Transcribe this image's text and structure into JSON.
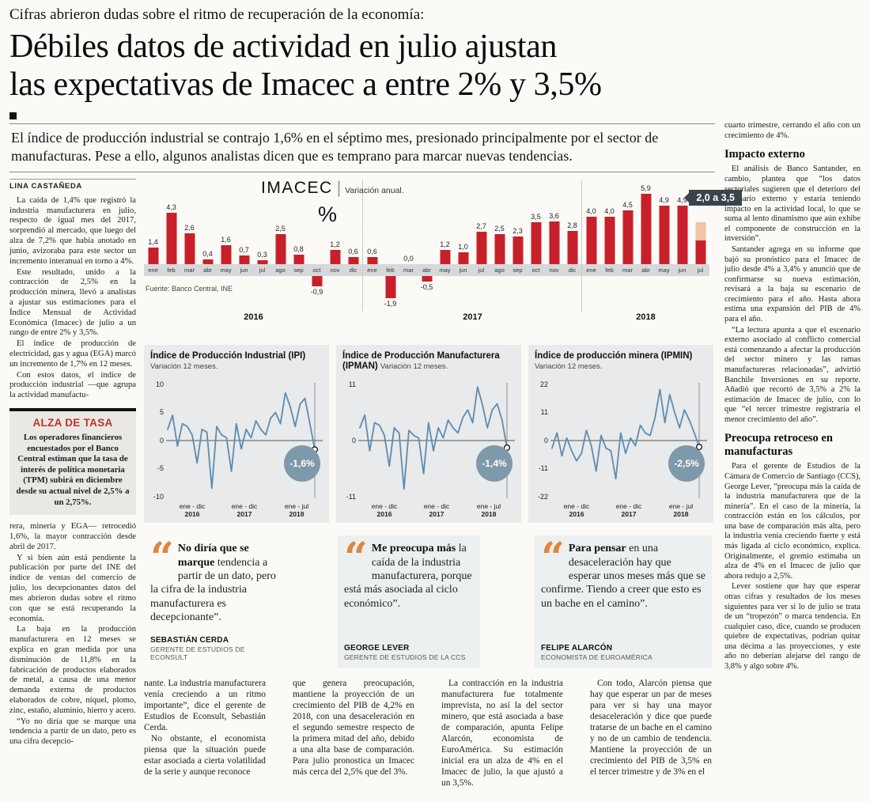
{
  "kicker": "Cifras abrieron dudas sobre el ritmo de recuperación de la economía:",
  "headline": {
    "line1": "Débiles datos de actividad en julio ajustan",
    "line2": "las expectativas de Imacec a entre 2% y 3,5%"
  },
  "lede": "El índice de producción industrial se contrajo 1,6% en el séptimo mes, presionado principalmente por el sector de manufacturas. Pese a ello, algunos analistas dicen que es temprano para marcar nuevas tendencias.",
  "byline": "LINA CASTAÑEDA",
  "left_column": {
    "paragraphs_before": [
      "La caída de 1,4% que registró la industria manufacturera en julio, respecto de igual mes del 2017, sorprendió al mercado, que luego del alza de 7,2% que había anotado en junio, avizoraba para este sector un incremento interanual en torno a 4%.",
      "Este resultado, unido a la contracción de 2,5% en la producción minera, llevó a analistas a ajustar sus estimaciones para el Índice Mensual de Actividad Económica (Imacec) de julio a un rango de entre 2% y 3,5%.",
      "El índice de producción de electricidad, gas y agua (EGA) marcó un incremento de 1,7% en 12 meses.",
      "Con estos datos, el índice de producción industrial —que agrupa la actividad manufactu-"
    ],
    "box": {
      "title": "ALZA DE TASA",
      "text": "Los operadores financieros encuestados por el Banco Central estiman que la tasa de interés de política monetaria (TPM) subirá en diciembre desde su actual nivel de 2,5% a un 2,75%."
    },
    "paragraphs_after": [
      "rera, minería y EGA— retrocedió 1,6%, la mayor contracción desde abril de 2017.",
      "Y si bien aún está pendiente la publicación por parte del INE del índice de ventas del comercio de julio, los decepcionantes datos del mes abrieron dudas sobre el ritmo con que se está recuperando la economía.",
      "La baja en la producción manufacturera en 12 meses se explica en gran medida por una disminución de 11,8% en la fabricación de productos elaborados de metal, a causa de una menor demanda externa de productos elaborados de cobre, níquel, plomo, zinc, estaño, aluminio, hierro y acero.",
      "“Yo no diría que se marque una tendencia a partir de un dato, pero es una cifra decepcio-"
    ]
  },
  "chart_data": [
    {
      "type": "bar",
      "title": "IMACEC",
      "title_sep": "|",
      "subtitle": "Variación anual.",
      "unit": "%",
      "source": "Fuente: Banco Central, INE",
      "months": [
        "ene",
        "feb",
        "mar",
        "abr",
        "may",
        "jun",
        "jul",
        "ago",
        "sep",
        "oct",
        "nov",
        "dic"
      ],
      "groups": [
        {
          "year": "2016",
          "values": [
            1.4,
            4.3,
            2.6,
            0.4,
            1.6,
            0.7,
            0.3,
            2.5,
            0.8,
            -0.9,
            1.2,
            0.6
          ],
          "labels": [
            "1,4",
            "4,3",
            "2,6",
            "0,4",
            "1,6",
            "0,7",
            "0,3",
            "2,5",
            "0,8",
            "-0,9",
            "1,2",
            "0,6"
          ]
        },
        {
          "year": "2017",
          "values": [
            0.6,
            -1.9,
            0.0,
            -0.5,
            1.2,
            1.0,
            2.7,
            2.5,
            2.3,
            3.5,
            3.6,
            2.8
          ],
          "labels": [
            "0,6",
            "-1,9",
            "0,0",
            "-0,5",
            "1,2",
            "1,0",
            "2,7",
            "2,5",
            "2,3",
            "3,5",
            "3,6",
            "2,8"
          ]
        },
        {
          "year": "2018",
          "values": [
            4.0,
            4.0,
            4.5,
            5.9,
            4.9,
            4.9,
            null
          ],
          "labels": [
            "4,0",
            "4,0",
            "4,5",
            "5,9",
            "4,9",
            "4,9",
            ""
          ]
        }
      ],
      "estimate": {
        "badge": "2,0 a 3,5",
        "low": 2.0,
        "high": 3.5,
        "month": "jul",
        "year": "2018"
      }
    },
    {
      "type": "line",
      "title": "Índice de Producción Industrial (IPI)",
      "subtitle": "Variación 12 meses.",
      "badge": "-1,6%",
      "ylim": [
        -10,
        10
      ],
      "yticks": [
        10,
        5,
        0,
        -5,
        -10
      ],
      "x_groups": [
        {
          "label": "ene - dic",
          "year": "2016"
        },
        {
          "label": "ene - dic",
          "year": "2017"
        },
        {
          "label": "ene - jul",
          "year": "2018"
        }
      ],
      "values": [
        2,
        4.5,
        -1,
        3,
        2.5,
        1,
        -4,
        2,
        1.5,
        -8.5,
        2.5,
        1,
        0.5,
        -5.5,
        3,
        -1.5,
        2,
        0.5,
        3.5,
        2,
        1,
        4,
        5,
        3,
        8.5,
        6,
        2.5,
        6.5,
        7.5,
        3,
        -1.6
      ]
    },
    {
      "type": "line",
      "title": "Índice de Producción Manufacturera (IPMAN)",
      "subtitle": "Variación 12 meses.",
      "badge": "-1,4%",
      "ylim": [
        -11,
        11
      ],
      "yticks": [
        11,
        0,
        -11
      ],
      "x_groups": [
        {
          "label": "ene - dic",
          "year": "2016"
        },
        {
          "label": "ene - dic",
          "year": "2017"
        },
        {
          "label": "ene - jul",
          "year": "2018"
        }
      ],
      "values": [
        2.5,
        5,
        -2,
        3.5,
        3,
        1,
        -5,
        2.5,
        1.5,
        -9.5,
        2,
        1,
        0.5,
        -6.5,
        3.5,
        -2,
        2.5,
        0.5,
        4,
        2.5,
        1.5,
        4.5,
        6,
        3.5,
        10.5,
        7,
        2.5,
        6,
        7.2,
        4,
        -1.4
      ]
    },
    {
      "type": "line",
      "title": "Índice de producción minera (IPMIN)",
      "subtitle": "Variación 12 meses.",
      "badge": "-2,5%",
      "ylim": [
        -22,
        22
      ],
      "yticks": [
        22,
        11,
        0,
        -11,
        -22
      ],
      "x_groups": [
        {
          "label": "ene - dic",
          "year": "2016"
        },
        {
          "label": "ene - dic",
          "year": "2017"
        },
        {
          "label": "ene - jul",
          "year": "2018"
        }
      ],
      "values": [
        -3,
        3,
        -6,
        1,
        -4,
        -8,
        -5,
        4,
        -2,
        -12,
        2,
        -3,
        -4,
        -15,
        3,
        -5,
        1,
        -2,
        6,
        3,
        2,
        9,
        20,
        7,
        18,
        11,
        5,
        12,
        8,
        3,
        -2.5
      ]
    }
  ],
  "quotes": [
    {
      "lead": "No diría que se marque",
      "rest": " tendencia a partir de un dato, pero la cifra de la industria manufacturera es decepcionante”.",
      "name": "SEBASTIÁN CERDA",
      "role": "GERENTE DE ESTUDIOS DE ECONSULT"
    },
    {
      "lead": "Me preocupa más",
      "rest": " la caída de la industria manufacturera, porque está más asociada al ciclo económico”.",
      "name": "GEORGE LEVER",
      "role": "GERENTE DE ESTUDIOS DE LA CCS"
    },
    {
      "lead": "Para pensar",
      "rest": " en una desaceleración hay que esperar unos meses más que se confirme. Tiendo a creer que esto es un bache en el camino”.",
      "name": "FELIPE ALARCÓN",
      "role": "ECONOMISTA DE EUROAMÉRICA"
    }
  ],
  "bottom_columns": {
    "col1": [
      "nante. La industria manufacturera venía creciendo a un ritmo importante”, dice el gerente de Estudios de Econsult, Sebastián Cerda.",
      "No obstante, el economista piensa que la situación puede estar asociada a cierta volatilidad de la serie y aunque reconoce"
    ],
    "col2": [
      "que genera preocupación, mantiene la proyección de un crecimiento del PIB de 4,2% en 2018, con una desaceleración en el segundo semestre respecto de la primera mitad del año, debido a una alta base de comparación. Para julio pronostica un Imacec más cerca del 2,5% que del 3%."
    ],
    "col3": [
      "La contracción en la industria manufacturera fue totalmente imprevista, no así la del sector minero, que está asociada a base de comparación, apunta Felipe Alarcón, economista de EuroAmérica. Su estimación inicial era un alza de 4% en el Imacec de julio, la que ajustó a un 3,5%."
    ],
    "col4": [
      "Con todo, Alarcón piensa que hay que esperar un par de meses para ver si hay una mayor desaceleración y dice que puede tratarse de un bache en el camino y no de un cambio de tendencia. Mantiene la proyección de un crecimiento del PIB de 3,5% en el tercer trimestre y de 3% en el"
    ]
  },
  "right_column": {
    "continuation": "cuarto trimestre, cerrando el año con un crecimiento de 4%.",
    "sections": [
      {
        "heading": "Impacto externo",
        "paragraphs": [
          "El análisis de Banco Santander, en cambio, plantea que “los datos sectoriales sugieren que el deterioro del escenario externo y estaría teniendo impacto en la actividad local, lo que se suma al lento dinamismo que aún exhibe el componente de construcción en la inversión”.",
          "Santander agrega en su informe que bajó su pronóstico para el Imacec de julio desde 4% a 3,4% y anunció que de confirmarse su nueva estimación, revisará a la baja su escenario de crecimiento para el año. Hasta ahora estima una expansión del PIB de 4% para el año.",
          "“La lectura apunta a que el escenario externo asociado al conflicto comercial está comenzando a afectar la producción del sector minero y las ramas manufactureras relacionadas”, advirtió Banchile Inversiones en su reporte. Añadió que recortó de 3,5% a 2% la estimación de Imacec de julio, con lo que “el tercer trimestre registraría el menor crecimiento del año”."
        ]
      },
      {
        "heading": "Preocupa retroceso en manufacturas",
        "paragraphs": [
          "Para el gerente de Estudios de la Cámara de Comercio de Santiago (CCS), George Lever, “preocupa más la caída de la industria manufacturera que de la minería”. En el caso de la minería, la contracción están en los cálculos, por una base de comparación más alta, pero la industria venía creciendo fuerte y está más ligada al ciclo económico, explica. Originalmente, el gremio estimaba un alza de 4% en el Imacec de julio que ahora redujo a 2,5%.",
          "Lever sostiene que hay que esperar otras cifras y resultados de los meses siguientes para ver si lo de julio se trata de un “tropezón” o marca tendencia. En cualquier caso, dice, cuando se producen quiebre de expectativas, podrían quitar una décima a las proyecciones, y este año no deberían alejarse del rango de 3,8% y algo sobre 4%."
        ]
      }
    ]
  },
  "colors": {
    "bar_red": "#c8202a",
    "estimate_pink": "#f2c3a7",
    "estimate_badge_bg": "#3a434b",
    "line_blue": "#5d8cb0",
    "circle_badge_bg": "#7e99a9",
    "quote_orange": "#e0863c",
    "box_title_red": "#c23222",
    "panel_gray": "#e8eaeb",
    "axis_band_gray": "#d6d8d9"
  }
}
